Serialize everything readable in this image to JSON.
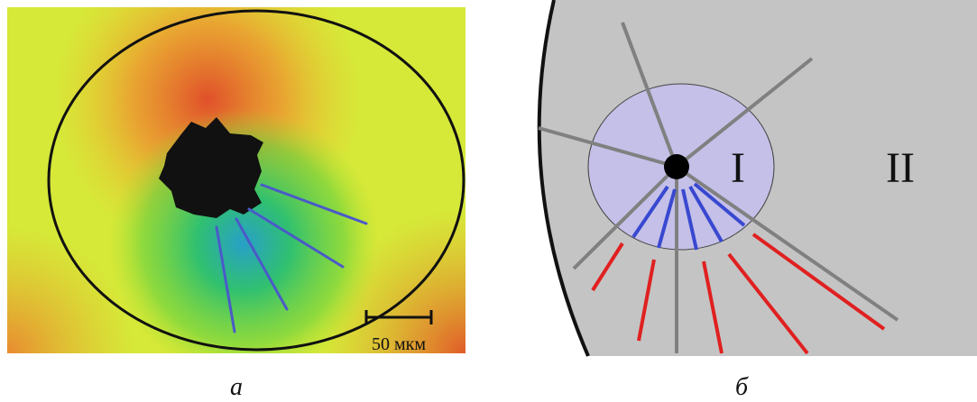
{
  "panels": [
    {
      "label": "а",
      "scale_bar": "50 мкм"
    },
    {
      "label": "б",
      "regions": [
        "I",
        "II"
      ]
    }
  ]
}
